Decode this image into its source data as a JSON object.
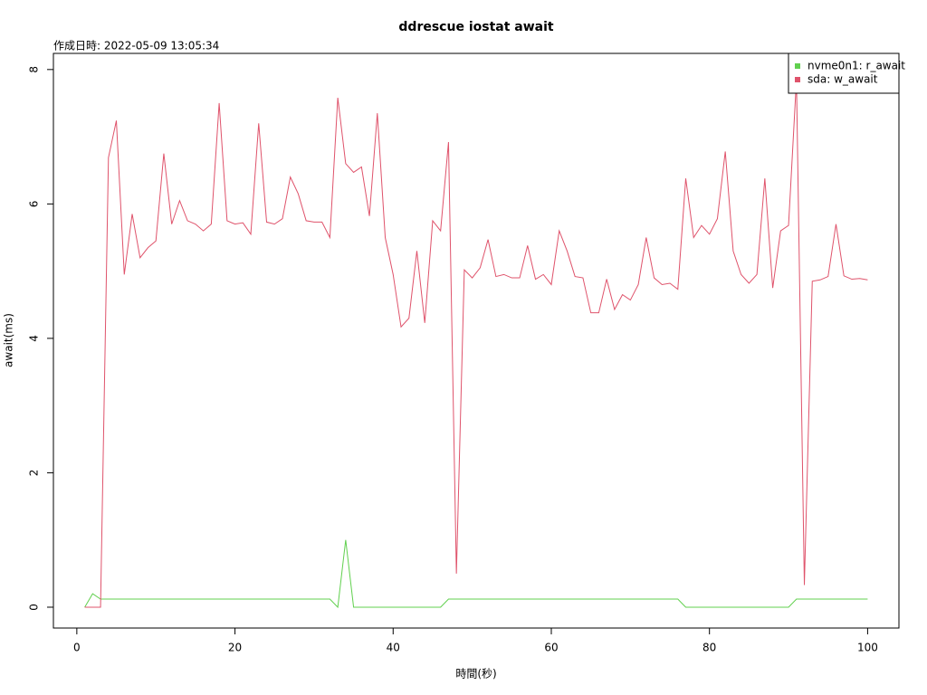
{
  "chart_data": {
    "type": "line",
    "title": "ddrescue iostat await",
    "subtitle": "作成日時: 2022-05-09 13:05:34",
    "x_label": "時間(秒)",
    "y_label": "await(ms)",
    "legend_position": "top-right",
    "xlim": [
      -2.96,
      103.96
    ],
    "ylim": [
      -0.31,
      8.24
    ],
    "xticks": [
      0,
      20,
      40,
      60,
      80,
      100
    ],
    "yticks": [
      0,
      2,
      4,
      6,
      8
    ],
    "x": [
      1,
      2,
      3,
      4,
      5,
      6,
      7,
      8,
      9,
      10,
      11,
      12,
      13,
      14,
      15,
      16,
      17,
      18,
      19,
      20,
      21,
      22,
      23,
      24,
      25,
      26,
      27,
      28,
      29,
      30,
      31,
      32,
      33,
      34,
      35,
      36,
      37,
      38,
      39,
      40,
      41,
      42,
      43,
      44,
      45,
      46,
      47,
      48,
      49,
      50,
      51,
      52,
      53,
      54,
      55,
      56,
      57,
      58,
      59,
      60,
      61,
      62,
      63,
      64,
      65,
      66,
      67,
      68,
      69,
      70,
      71,
      72,
      73,
      74,
      75,
      76,
      77,
      78,
      79,
      80,
      81,
      82,
      83,
      84,
      85,
      86,
      87,
      88,
      89,
      90,
      91,
      92,
      93,
      94,
      95,
      96,
      97,
      98,
      99,
      100
    ],
    "series": [
      {
        "name": "nvme0n1: r_await",
        "color": "#61D04F",
        "values": [
          0,
          0.2,
          0.12,
          0.12,
          0.12,
          0.12,
          0.12,
          0.12,
          0.12,
          0.12,
          0.12,
          0.12,
          0.12,
          0.12,
          0.12,
          0.12,
          0.12,
          0.12,
          0.12,
          0.12,
          0.12,
          0.12,
          0.12,
          0.12,
          0.12,
          0.12,
          0.12,
          0.12,
          0.12,
          0.12,
          0.12,
          0.12,
          0,
          1.0,
          0,
          0,
          0,
          0,
          0,
          0,
          0,
          0,
          0,
          0,
          0,
          0,
          0.12,
          0.12,
          0.12,
          0.12,
          0.12,
          0.12,
          0.12,
          0.12,
          0.12,
          0.12,
          0.12,
          0.12,
          0.12,
          0.12,
          0.12,
          0.12,
          0.12,
          0.12,
          0.12,
          0.12,
          0.12,
          0.12,
          0.12,
          0.12,
          0.12,
          0.12,
          0.12,
          0.12,
          0.12,
          0.12,
          0,
          0,
          0,
          0,
          0,
          0,
          0,
          0,
          0,
          0,
          0,
          0,
          0,
          0,
          0.12,
          0.12,
          0.12,
          0.12,
          0.12,
          0.12,
          0.12,
          0.12,
          0.12,
          0.12
        ]
      },
      {
        "name": "sda: w_await",
        "color": "#DF536B",
        "values": [
          0,
          0,
          0,
          6.69,
          7.24,
          4.95,
          5.85,
          5.2,
          5.35,
          5.45,
          6.75,
          5.7,
          6.05,
          5.75,
          5.7,
          5.6,
          5.7,
          7.5,
          5.75,
          5.7,
          5.72,
          5.55,
          7.2,
          5.73,
          5.7,
          5.78,
          6.4,
          6.15,
          5.75,
          5.73,
          5.73,
          5.5,
          7.58,
          6.6,
          6.47,
          6.55,
          5.82,
          7.35,
          5.5,
          4.95,
          4.17,
          4.3,
          5.3,
          4.23,
          5.75,
          5.6,
          6.92,
          0.5,
          5.02,
          4.9,
          5.05,
          5.47,
          4.92,
          4.95,
          4.9,
          4.9,
          5.38,
          4.88,
          4.95,
          4.8,
          5.6,
          5.3,
          4.92,
          4.9,
          4.38,
          4.38,
          4.88,
          4.43,
          4.65,
          4.57,
          4.8,
          5.5,
          4.9,
          4.8,
          4.82,
          4.73,
          6.38,
          5.5,
          5.68,
          5.55,
          5.78,
          6.78,
          5.3,
          4.95,
          4.82,
          4.95,
          6.38,
          4.75,
          5.6,
          5.68,
          7.85,
          0.33,
          4.85,
          4.87,
          4.92,
          5.7,
          4.93,
          4.88,
          4.89,
          4.87
        ]
      }
    ]
  }
}
